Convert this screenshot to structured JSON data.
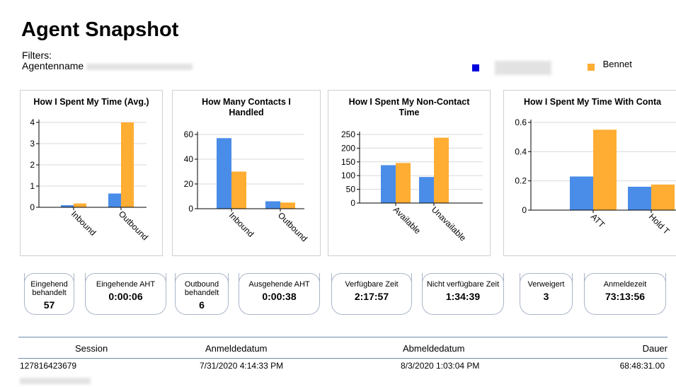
{
  "page": {
    "title": "Agent Snapshot"
  },
  "filters": {
    "label": "Filters:",
    "agent_label": "Agentenname"
  },
  "legend": [
    {
      "name": "",
      "color": "#0000dd"
    },
    {
      "name": "Bennet",
      "color": "#ffad33"
    }
  ],
  "colors": {
    "series_a": "#4a8de8",
    "series_b": "#ffad33"
  },
  "chart_data": [
    {
      "type": "bar",
      "title": "How I Spent My Time (Avg.)",
      "categories": [
        "Inbound",
        "Outbound"
      ],
      "series": [
        {
          "values": [
            0.1,
            0.65
          ]
        },
        {
          "values": [
            0.18,
            4.0
          ]
        }
      ],
      "ylim": [
        0,
        4
      ],
      "yticks": [
        "0",
        "1",
        "2",
        "3",
        "4"
      ],
      "grid": true
    },
    {
      "type": "bar",
      "title": "How Many Contacts I Handled",
      "categories": [
        "Inbound",
        "Outbound"
      ],
      "series": [
        {
          "values": [
            57,
            6
          ]
        },
        {
          "values": [
            30,
            5
          ]
        }
      ],
      "ylim": [
        0,
        60
      ],
      "yticks": [
        "0",
        "20",
        "40",
        "60"
      ],
      "grid": true
    },
    {
      "type": "bar",
      "title": "How I Spent My Non-Contact Time",
      "categories": [
        "Available",
        "Unavailable"
      ],
      "series": [
        {
          "values": [
            138,
            95
          ]
        },
        {
          "values": [
            146,
            238
          ]
        }
      ],
      "ylim": [
        0,
        250
      ],
      "yticks": [
        "0",
        "50",
        "100",
        "150",
        "200",
        "250"
      ],
      "grid": true
    },
    {
      "type": "bar",
      "title": "How I Spent My Time With Conta",
      "categories": [
        "ATT",
        "Hold T"
      ],
      "series": [
        {
          "values": [
            0.23,
            0.16
          ]
        },
        {
          "values": [
            0.55,
            0.175
          ]
        }
      ],
      "ylim": [
        0,
        0.6
      ],
      "yticks": [
        "0",
        "0.2",
        "0.4",
        "0.6"
      ],
      "grid": true
    }
  ],
  "kpis": [
    {
      "label": "Eingehend behandelt",
      "value": "57"
    },
    {
      "label": "Eingehende AHT",
      "value": "0:00:06"
    },
    {
      "label": "Outbound behandelt",
      "value": "6"
    },
    {
      "label": "Ausgehende AHT",
      "value": "0:00:38"
    },
    {
      "label": "Verfügbare Zeit",
      "value": "2:17:57"
    },
    {
      "label": "Nicht verfügbare Zeit",
      "value": "1:34:39"
    },
    {
      "label": "Verweigert",
      "value": "3"
    },
    {
      "label": "Anmeldezeit",
      "value": "73:13:56"
    }
  ],
  "table": {
    "headers": [
      "Session",
      "Anmeldedatum",
      "Abmeldedatum",
      "Dauer"
    ],
    "rows": [
      [
        "127816423679",
        "7/31/2020 4:14:33 PM",
        "8/3/2020 1:03:04 PM",
        "68:48:31.00"
      ]
    ]
  }
}
